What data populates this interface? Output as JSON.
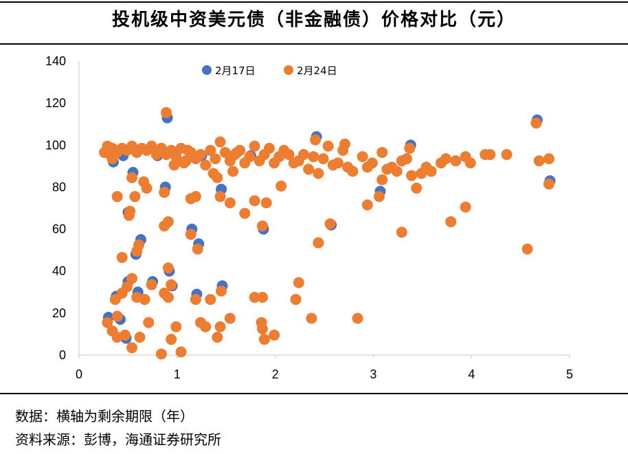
{
  "title": "投机级中资美元债（非金融债）价格对比（元）",
  "footnote_data": "数据：横轴为剩余期限（年）",
  "footnote_source": "资料来源：彭博，海通证券研究所",
  "colors": {
    "series1": "#4472C4",
    "series2": "#ED7D31",
    "axis": "#D9D9D9"
  },
  "chart_data": {
    "type": "scatter",
    "title": "投机级中资美元债（非金融债）价格对比（元）",
    "xlabel": "",
    "ylabel": "",
    "xlim": [
      0,
      5
    ],
    "ylim": [
      0,
      140
    ],
    "x_ticks": [
      "0",
      "1",
      "2",
      "3",
      "4",
      "5"
    ],
    "y_ticks": [
      "0",
      "20",
      "40",
      "60",
      "80",
      "100",
      "120",
      "140"
    ],
    "legend_position": "top",
    "series": [
      {
        "name": "2月17日",
        "points": [
          [
            0.9,
            113
          ],
          [
            0.3,
            18
          ],
          [
            0.35,
            92
          ],
          [
            0.5,
            68
          ],
          [
            0.55,
            87
          ],
          [
            0.63,
            55
          ],
          [
            0.58,
            48
          ],
          [
            0.88,
            80
          ],
          [
            0.92,
            40
          ],
          [
            0.95,
            33
          ],
          [
            0.6,
            30
          ],
          [
            0.75,
            35
          ],
          [
            0.5,
            35
          ],
          [
            0.48,
            8
          ],
          [
            0.42,
            17
          ],
          [
            1.15,
            60
          ],
          [
            1.22,
            53
          ],
          [
            1.2,
            29
          ],
          [
            1.45,
            79
          ],
          [
            1.46,
            33
          ],
          [
            1.88,
            60
          ],
          [
            2.42,
            104
          ],
          [
            2.57,
            62
          ],
          [
            3.38,
            100
          ],
          [
            4.67,
            112
          ],
          [
            4.8,
            83
          ],
          [
            3.07,
            78
          ],
          [
            0.8,
            95
          ],
          [
            0.38,
            28
          ],
          [
            0.45,
            95
          ],
          [
            1.25,
            95
          ],
          [
            1.75,
            95
          ]
        ]
      },
      {
        "name": "2月24日",
        "points": [
          [
            0.9,
            116
          ],
          [
            0.3,
            16
          ],
          [
            0.35,
            94
          ],
          [
            0.52,
            67
          ],
          [
            0.55,
            85
          ],
          [
            0.62,
            53
          ],
          [
            0.6,
            50
          ],
          [
            0.88,
            78
          ],
          [
            0.92,
            42
          ],
          [
            0.95,
            34
          ],
          [
            0.6,
            28
          ],
          [
            0.75,
            34
          ],
          [
            0.5,
            33
          ],
          [
            0.48,
            10
          ],
          [
            0.4,
            19
          ],
          [
            1.15,
            58
          ],
          [
            1.22,
            51
          ],
          [
            1.2,
            27
          ],
          [
            1.45,
            76
          ],
          [
            1.46,
            31
          ],
          [
            1.88,
            62
          ],
          [
            2.42,
            103
          ],
          [
            2.57,
            63
          ],
          [
            3.38,
            99
          ],
          [
            4.67,
            111
          ],
          [
            4.8,
            82
          ],
          [
            3.07,
            76
          ],
          [
            0.8,
            96
          ],
          [
            0.38,
            27
          ],
          [
            0.4,
            76
          ],
          [
            0.45,
            47
          ],
          [
            0.53,
            69
          ],
          [
            0.67,
            83
          ],
          [
            0.7,
            80
          ],
          [
            0.58,
            76
          ],
          [
            0.35,
            12
          ],
          [
            0.4,
            9
          ],
          [
            0.55,
            4
          ],
          [
            0.63,
            9
          ],
          [
            0.85,
            1
          ],
          [
            0.95,
            8
          ],
          [
            1.05,
            2
          ],
          [
            0.45,
            30
          ],
          [
            0.55,
            37
          ],
          [
            0.68,
            27
          ],
          [
            0.72,
            16
          ],
          [
            0.88,
            30
          ],
          [
            0.92,
            28
          ],
          [
            1.0,
            14
          ],
          [
            0.88,
            62
          ],
          [
            0.92,
            64
          ],
          [
            1.15,
            75
          ],
          [
            1.2,
            76
          ],
          [
            1.25,
            16
          ],
          [
            1.3,
            14
          ],
          [
            1.35,
            27
          ],
          [
            1.42,
            9
          ],
          [
            1.45,
            14
          ],
          [
            1.55,
            18
          ],
          [
            1.55,
            73
          ],
          [
            1.7,
            68
          ],
          [
            1.8,
            74
          ],
          [
            1.8,
            28
          ],
          [
            1.88,
            28
          ],
          [
            1.87,
            16
          ],
          [
            1.88,
            13
          ],
          [
            1.9,
            8
          ],
          [
            1.92,
            73
          ],
          [
            2.0,
            10
          ],
          [
            2.07,
            81
          ],
          [
            2.22,
            27
          ],
          [
            2.25,
            35
          ],
          [
            2.38,
            18
          ],
          [
            2.45,
            54
          ],
          [
            2.85,
            18
          ],
          [
            2.95,
            72
          ],
          [
            3.1,
            84
          ],
          [
            3.3,
            59
          ],
          [
            3.45,
            80
          ],
          [
            3.8,
            64
          ],
          [
            3.95,
            71
          ],
          [
            4.58,
            51
          ],
          [
            4.7,
            93
          ],
          [
            4.8,
            94
          ],
          [
            4.37,
            96
          ],
          [
            4.2,
            96
          ],
          [
            4.15,
            96
          ],
          [
            4.0,
            92
          ],
          [
            3.95,
            95
          ],
          [
            3.75,
            94
          ],
          [
            3.6,
            88
          ],
          [
            3.5,
            87
          ],
          [
            3.4,
            86
          ],
          [
            3.3,
            93
          ],
          [
            3.2,
            90
          ],
          [
            3.1,
            97
          ],
          [
            3.0,
            92
          ],
          [
            2.9,
            95
          ],
          [
            2.8,
            88
          ],
          [
            2.7,
            98
          ],
          [
            2.6,
            91
          ],
          [
            2.5,
            94
          ],
          [
            2.45,
            87
          ],
          [
            2.4,
            95
          ],
          [
            2.35,
            89
          ],
          [
            2.3,
            96
          ],
          [
            2.2,
            92
          ],
          [
            2.1,
            98
          ],
          [
            2.05,
            95
          ],
          [
            2.0,
            92
          ],
          [
            1.95,
            99
          ],
          [
            1.9,
            96
          ],
          [
            1.85,
            93
          ],
          [
            1.8,
            100
          ],
          [
            1.75,
            95
          ],
          [
            1.7,
            92
          ],
          [
            1.65,
            98
          ],
          [
            1.6,
            96
          ],
          [
            1.55,
            93
          ],
          [
            1.5,
            97
          ],
          [
            1.45,
            102
          ],
          [
            1.4,
            94
          ],
          [
            1.35,
            98
          ],
          [
            1.3,
            91
          ],
          [
            1.25,
            96
          ],
          [
            1.2,
            94
          ],
          [
            1.15,
            97
          ],
          [
            1.1,
            93
          ],
          [
            1.05,
            99
          ],
          [
            1.0,
            95
          ],
          [
            0.95,
            98
          ],
          [
            0.9,
            96
          ],
          [
            0.85,
            99
          ],
          [
            0.8,
            97
          ],
          [
            0.75,
            100
          ],
          [
            0.7,
            98
          ],
          [
            0.65,
            99
          ],
          [
            0.6,
            97
          ],
          [
            0.55,
            100
          ],
          [
            0.5,
            98
          ],
          [
            0.45,
            99
          ],
          [
            0.4,
            97
          ],
          [
            0.35,
            99
          ],
          [
            0.3,
            100
          ],
          [
            2.55,
            100
          ],
          [
            2.72,
            101
          ],
          [
            3.35,
            94
          ],
          [
            3.55,
            90
          ],
          [
            3.7,
            92
          ],
          [
            3.85,
            93
          ],
          [
            2.65,
            92
          ],
          [
            2.75,
            90
          ],
          [
            2.95,
            90
          ],
          [
            3.15,
            89
          ],
          [
            3.25,
            88
          ],
          [
            2.25,
            93
          ],
          [
            2.15,
            96
          ],
          [
            1.58,
            88
          ],
          [
            1.62,
            97
          ],
          [
            1.42,
            85
          ],
          [
            1.38,
            87
          ],
          [
            0.27,
            97
          ],
          [
            0.33,
            96
          ],
          [
            1.08,
            92
          ],
          [
            1.12,
            98
          ],
          [
            0.98,
            91
          ]
        ]
      }
    ]
  }
}
